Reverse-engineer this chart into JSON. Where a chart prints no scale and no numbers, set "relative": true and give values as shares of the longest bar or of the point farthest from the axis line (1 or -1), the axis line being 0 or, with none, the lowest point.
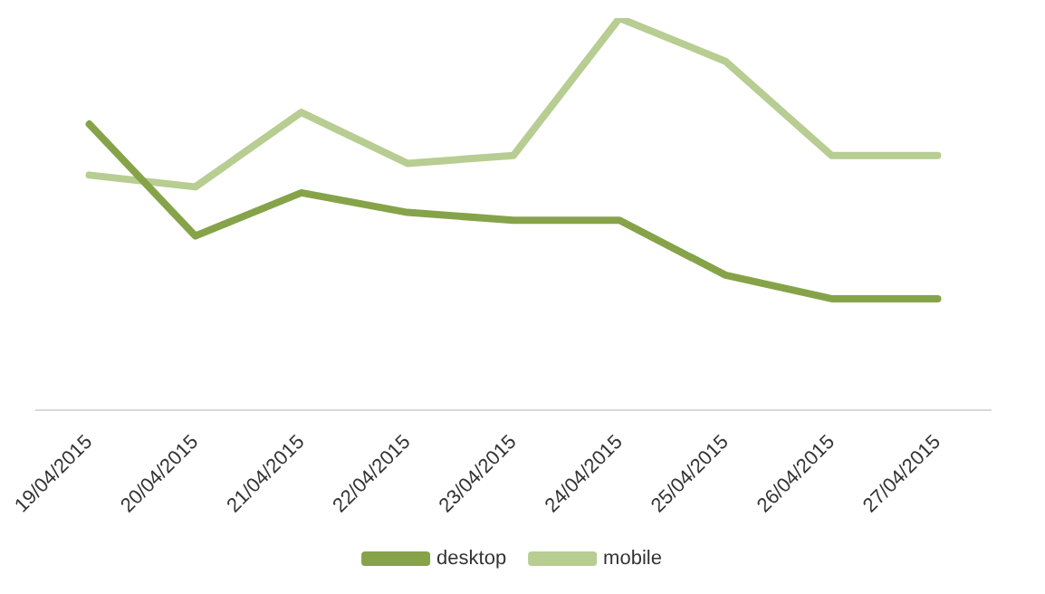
{
  "chart_data": {
    "type": "line",
    "relative": true,
    "categories": [
      "19/04/2015",
      "20/04/2015",
      "21/04/2015",
      "22/04/2015",
      "23/04/2015",
      "24/04/2015",
      "25/04/2015",
      "26/04/2015",
      "27/04/2015"
    ],
    "series": [
      {
        "name": "desktop",
        "color": "#86a34a",
        "values": [
          0.73,
          0.445,
          0.555,
          0.505,
          0.485,
          0.485,
          0.345,
          0.285,
          0.285
        ]
      },
      {
        "name": "mobile",
        "color": "#b7cd92",
        "values": [
          0.6,
          0.57,
          0.76,
          0.63,
          0.65,
          1,
          0.89,
          0.65,
          0.65
        ]
      }
    ],
    "legend": "bottom",
    "grid": false,
    "marker": "none",
    "line_style": "solid"
  }
}
